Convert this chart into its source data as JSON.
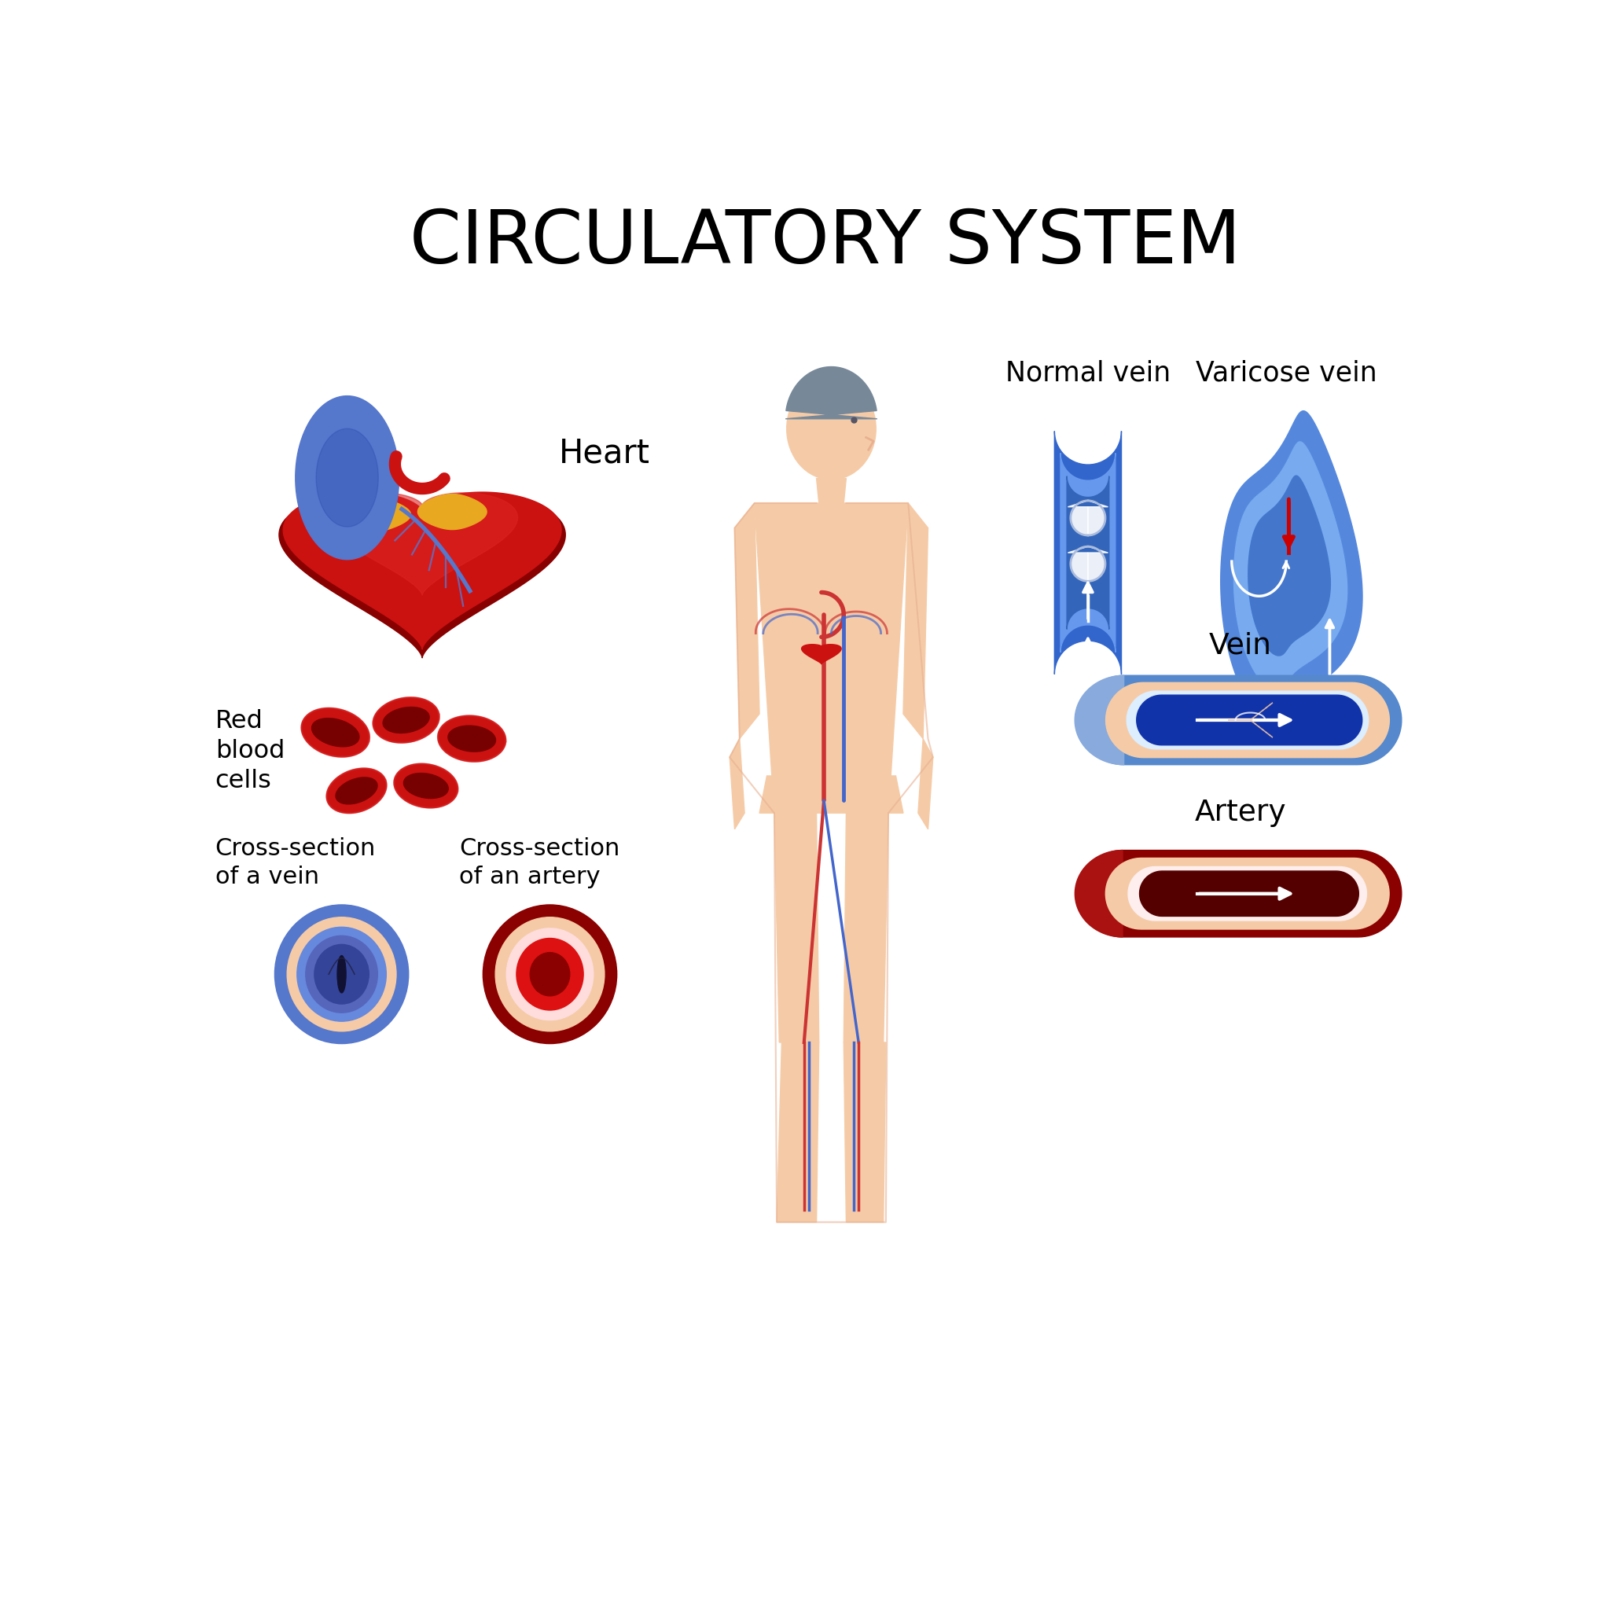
{
  "title": "CIRCULATORY SYSTEM",
  "title_fontsize": 68,
  "bg_color": "#ffffff",
  "labels": {
    "heart": "Heart",
    "red_blood_cells": "Red\nblood\ncells",
    "cross_vein": "Cross-section\nof a vein",
    "cross_artery": "Cross-section\nof an artery",
    "normal_vein": "Normal vein",
    "varicose_vein": "Varicose vein",
    "vein": "Vein",
    "artery": "Artery"
  },
  "colors": {
    "heart_main": "#cc1111",
    "heart_dark": "#880000",
    "heart_mid": "#dd2222",
    "heart_highlight": "#ff6655",
    "heart_yellow": "#e8a820",
    "heart_yellow2": "#f0c060",
    "heart_blue": "#5577cc",
    "heart_blue_dark": "#2244aa",
    "skin_color": "#f5cba7",
    "skin_dark": "#e8b090",
    "rbc_red": "#cc1111",
    "rbc_dark": "#770000",
    "rbc_mid": "#dd3333",
    "blue_vein": "#4488dd",
    "blue_vein_light": "#77aaee",
    "blue_vein_lighter": "#aaccff",
    "blue_vein_dark": "#1144aa",
    "blue_vein_darkest": "#002288",
    "artery_dark": "#8b0000",
    "artery_mid": "#aa1100",
    "artery_inner": "#440000",
    "white": "#ffffff",
    "red_arrow": "#cc0000",
    "gray_hair": "#778899"
  }
}
